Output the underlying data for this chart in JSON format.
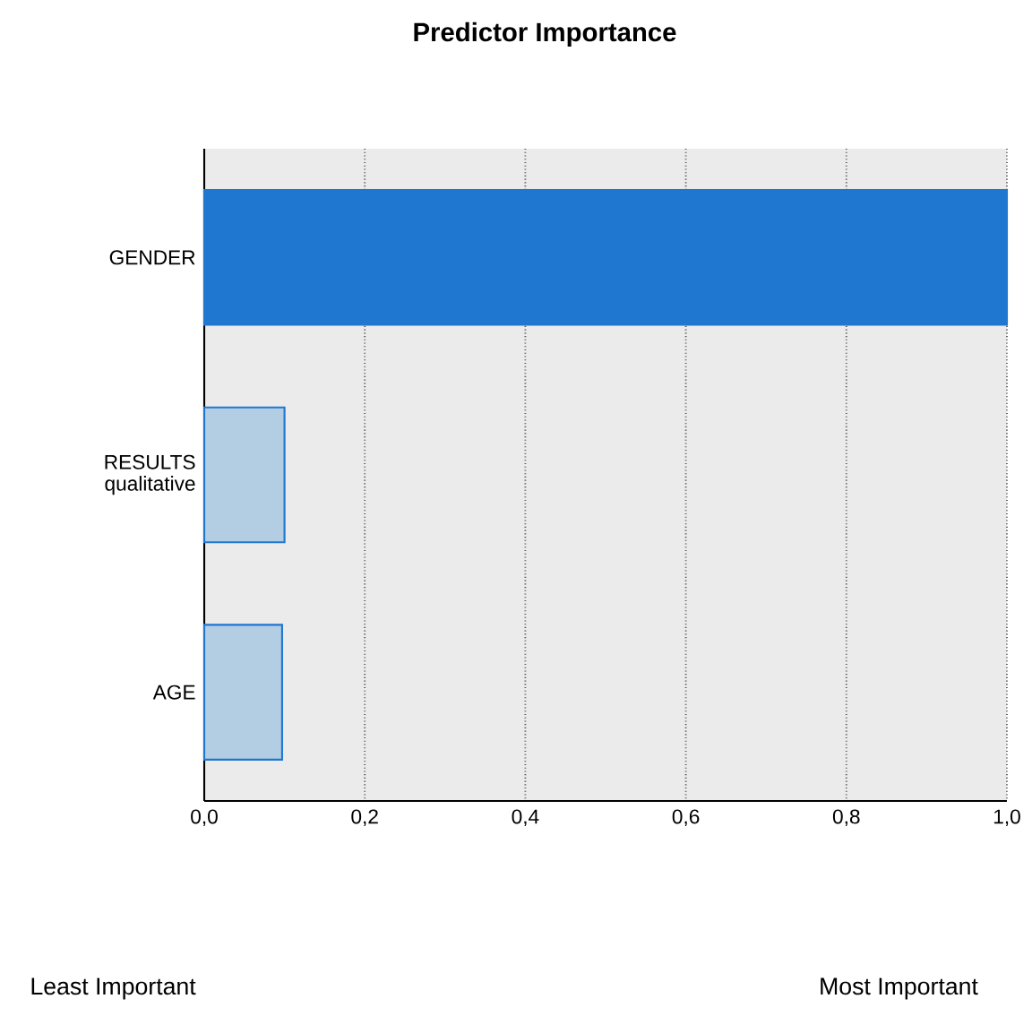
{
  "chart_data": {
    "type": "bar",
    "orientation": "horizontal",
    "title": "Predictor Importance",
    "categories": [
      "GENDER",
      "RESULTS qualitative",
      "AGE"
    ],
    "values": [
      1.0,
      0.1,
      0.097
    ],
    "colors": [
      "#1f77d0",
      "#b3cde3",
      "#b3cde3"
    ],
    "xlim": [
      0,
      1
    ],
    "xticks": [
      {
        "value": 0,
        "label": "0,0"
      },
      {
        "value": 0.2,
        "label": "0,2"
      },
      {
        "value": 0.4,
        "label": "0,4"
      },
      {
        "value": 0.6,
        "label": "0,6"
      },
      {
        "value": 0.8,
        "label": "0,8"
      },
      {
        "value": 1,
        "label": "1,0"
      }
    ],
    "grid": "x",
    "annotations": [
      "Least Important",
      "Most Important"
    ]
  }
}
